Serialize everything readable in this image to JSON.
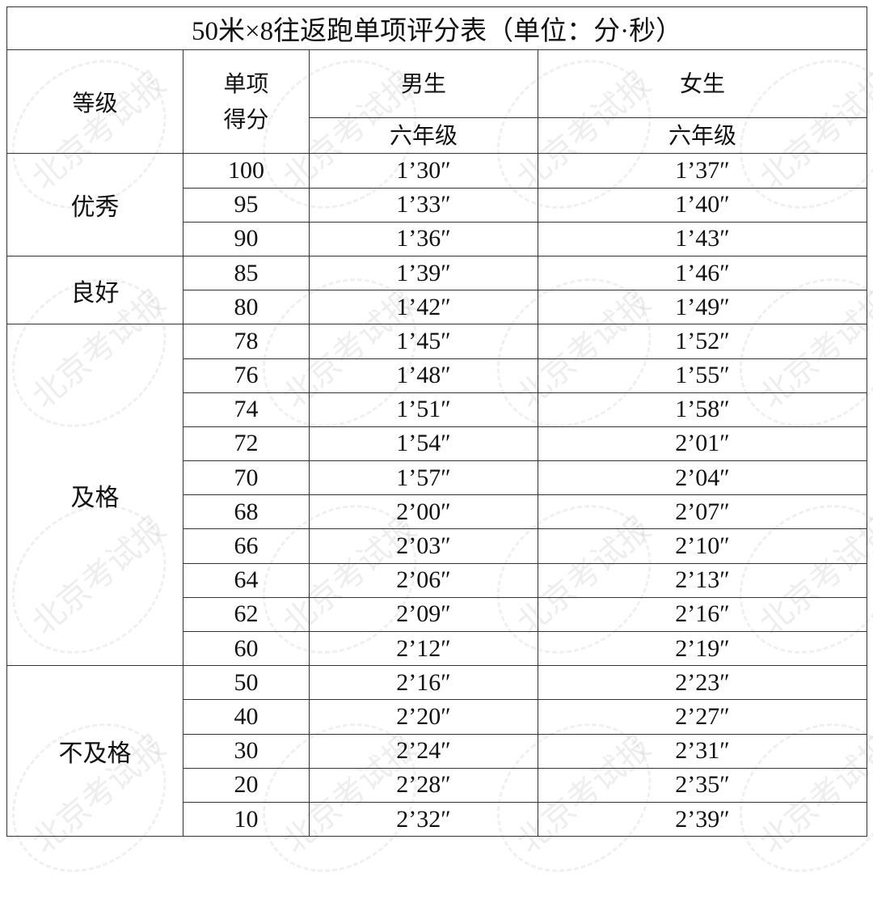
{
  "title": "50米×8往返跑单项评分表（单位：分·秒）",
  "watermark": "北京考试报",
  "headers": {
    "grade": "等级",
    "score_line1": "单项",
    "score_line2": "得分",
    "boys": "男生",
    "girls": "女生",
    "boys_grade": "六年级",
    "girls_grade": "六年级"
  },
  "groups": [
    {
      "grade": "优秀",
      "rows": [
        {
          "score": "100",
          "boys": "1’30″",
          "girls": "1’37″"
        },
        {
          "score": "95",
          "boys": "1’33″",
          "girls": "1’40″"
        },
        {
          "score": "90",
          "boys": "1’36″",
          "girls": "1’43″"
        }
      ]
    },
    {
      "grade": "良好",
      "rows": [
        {
          "score": "85",
          "boys": "1’39″",
          "girls": "1’46″"
        },
        {
          "score": "80",
          "boys": "1’42″",
          "girls": "1’49″"
        }
      ]
    },
    {
      "grade": "及格",
      "rows": [
        {
          "score": "78",
          "boys": "1’45″",
          "girls": "1’52″"
        },
        {
          "score": "76",
          "boys": "1’48″",
          "girls": "1’55″"
        },
        {
          "score": "74",
          "boys": "1’51″",
          "girls": "1’58″"
        },
        {
          "score": "72",
          "boys": "1’54″",
          "girls": "2’01″"
        },
        {
          "score": "70",
          "boys": "1’57″",
          "girls": "2’04″"
        },
        {
          "score": "68",
          "boys": "2’00″",
          "girls": "2’07″"
        },
        {
          "score": "66",
          "boys": "2’03″",
          "girls": "2’10″"
        },
        {
          "score": "64",
          "boys": "2’06″",
          "girls": "2’13″"
        },
        {
          "score": "62",
          "boys": "2’09″",
          "girls": "2’16″"
        },
        {
          "score": "60",
          "boys": "2’12″",
          "girls": "2’19″"
        }
      ]
    },
    {
      "grade": "不及格",
      "rows": [
        {
          "score": "50",
          "boys": "2’16″",
          "girls": "2’23″"
        },
        {
          "score": "40",
          "boys": "2’20″",
          "girls": "2’27″"
        },
        {
          "score": "30",
          "boys": "2’24″",
          "girls": "2’31″"
        },
        {
          "score": "20",
          "boys": "2’28″",
          "girls": "2’35″"
        },
        {
          "score": "10",
          "boys": "2’32″",
          "girls": "2’39″"
        }
      ]
    }
  ]
}
